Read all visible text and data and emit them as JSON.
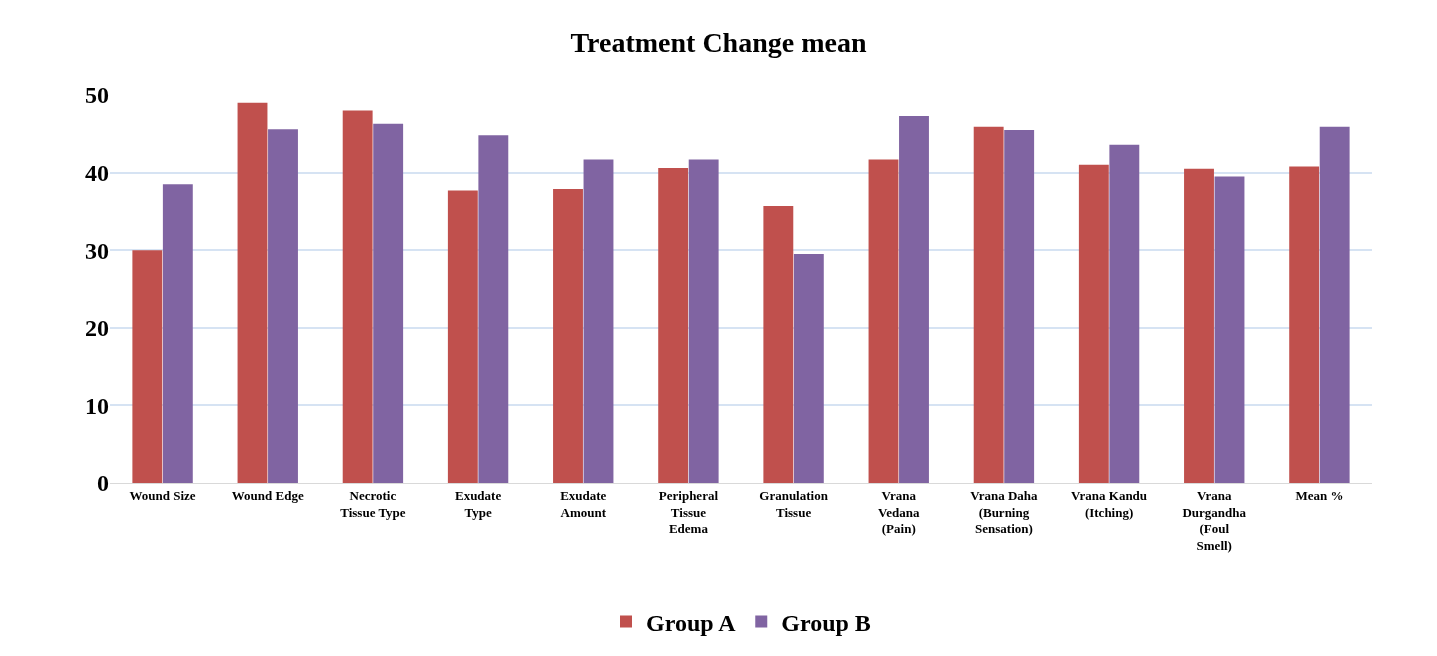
{
  "chart_data": {
    "type": "bar",
    "title": "Treatment Change mean",
    "categories": [
      "Wound Size",
      "Wound Edge",
      "Necrotic Tissue Type",
      "Exudate Type",
      "Exudate Amount",
      "Peripheral Tissue Edema",
      "Granulation Tissue",
      "Vrana Vedana (Pain)",
      "Vrana Daha (Burning Sensation)",
      "Vrana Kandu (Itching)",
      "Vrana Durgandha (Foul Smell)",
      "Mean %"
    ],
    "series": [
      {
        "name": "Group A",
        "color": "#c0504d",
        "values": [
          30,
          49,
          48,
          37.7,
          37.9,
          40.6,
          35.7,
          41.7,
          45.9,
          41,
          40.5,
          40.8
        ]
      },
      {
        "name": "Group B",
        "color": "#8064a2",
        "values": [
          38.5,
          45.6,
          46.3,
          44.8,
          41.7,
          41.7,
          29.5,
          47.3,
          45.5,
          43.6,
          39.5,
          45.9
        ]
      }
    ],
    "ylim": [
      0,
      50
    ],
    "yticks": [
      0,
      10,
      20,
      30,
      40,
      50
    ],
    "grid": "y",
    "legend": "bottom"
  }
}
